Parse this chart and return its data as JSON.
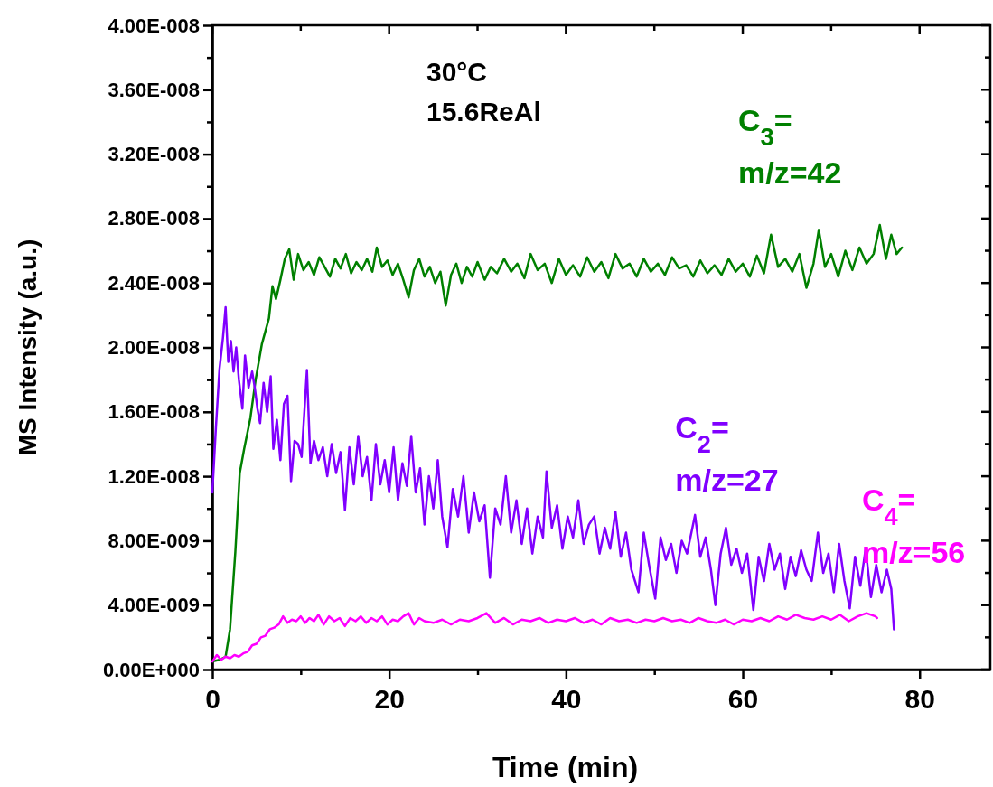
{
  "chart_data": {
    "type": "line",
    "xlabel": "Time (min)",
    "ylabel": "MS Intensity (a.u.)",
    "annotations": [
      "30°C",
      "15.6ReAl"
    ],
    "xlim": [
      0,
      88
    ],
    "ylim": [
      0,
      4e-08
    ],
    "xticks": [
      0,
      {
        "value": 10,
        "label": null
      },
      20,
      {
        "value": 30,
        "label": null
      },
      40,
      {
        "value": 50,
        "label": null
      },
      60,
      {
        "value": 70,
        "label": null
      },
      80
    ],
    "yticks": [
      {
        "value": 0,
        "label": "0.00E+000"
      },
      {
        "value": 2e-09,
        "label": null
      },
      {
        "value": 4e-09,
        "label": "4.00E-009"
      },
      {
        "value": 6e-09,
        "label": null
      },
      {
        "value": 8e-09,
        "label": "8.00E-009"
      },
      {
        "value": 1e-08,
        "label": null
      },
      {
        "value": 1.2e-08,
        "label": "1.20E-008"
      },
      {
        "value": 1.4e-08,
        "label": null
      },
      {
        "value": 1.6e-08,
        "label": "1.60E-008"
      },
      {
        "value": 1.8e-08,
        "label": null
      },
      {
        "value": 2e-08,
        "label": "2.00E-008"
      },
      {
        "value": 2.2e-08,
        "label": null
      },
      {
        "value": 2.4e-08,
        "label": "2.40E-008"
      },
      {
        "value": 2.6e-08,
        "label": null
      },
      {
        "value": 2.8e-08,
        "label": "2.80E-008"
      },
      {
        "value": 3e-08,
        "label": null
      },
      {
        "value": 3.2e-08,
        "label": "3.20E-008"
      },
      {
        "value": 3.4e-08,
        "label": null
      },
      {
        "value": 3.6e-08,
        "label": "3.60E-008"
      },
      {
        "value": 3.8e-08,
        "label": null
      },
      {
        "value": 4e-08,
        "label": "4.00E-008"
      }
    ],
    "series": [
      {
        "name": "C$_{3}$=\nm/z=42",
        "color": "#008000",
        "x": [
          0,
          0.8,
          1.5,
          2.0,
          2.6,
          3.1,
          3.6,
          4.3,
          4.9,
          5.6,
          6.4,
          6.8,
          7.2,
          7.7,
          8.2,
          8.7,
          9.2,
          9.7,
          10.3,
          10.9,
          11.5,
          12.1,
          12.7,
          13.3,
          13.9,
          14.5,
          15.1,
          15.7,
          16.3,
          16.9,
          17.5,
          18.1,
          18.6,
          19.2,
          19.8,
          20.4,
          21.0,
          21.6,
          22.2,
          22.8,
          23.4,
          24.0,
          24.6,
          25.2,
          25.8,
          26.4,
          27.0,
          27.6,
          28.2,
          28.8,
          29.4,
          30.0,
          30.8,
          31.5,
          32.2,
          33.0,
          33.8,
          34.5,
          35.3,
          36.0,
          36.8,
          37.6,
          38.4,
          39.2,
          40.0,
          40.8,
          41.6,
          42.4,
          43.2,
          44.0,
          44.8,
          45.6,
          46.4,
          47.2,
          48.0,
          48.8,
          49.6,
          50.4,
          51.2,
          52.0,
          52.8,
          53.6,
          54.4,
          55.2,
          56.0,
          56.8,
          57.6,
          58.4,
          59.2,
          60.0,
          60.8,
          61.6,
          62.4,
          63.2,
          64.0,
          64.8,
          65.6,
          66.4,
          67.2,
          68.0,
          68.6,
          69.3,
          70.0,
          70.8,
          71.6,
          72.4,
          73.2,
          74.0,
          74.8,
          75.5,
          76.2,
          76.8,
          77.4,
          78.0
        ],
        "values": [
          5e-10,
          6e-10,
          8e-10,
          2.5e-09,
          7.3e-09,
          1.22e-08,
          1.37e-08,
          1.56e-08,
          1.8e-08,
          2.02e-08,
          2.18e-08,
          2.38e-08,
          2.3e-08,
          2.42e-08,
          2.55e-08,
          2.61e-08,
          2.42e-08,
          2.58e-08,
          2.48e-08,
          2.53e-08,
          2.45e-08,
          2.56e-08,
          2.5e-08,
          2.44e-08,
          2.55e-08,
          2.49e-08,
          2.58e-08,
          2.46e-08,
          2.53e-08,
          2.48e-08,
          2.55e-08,
          2.47e-08,
          2.62e-08,
          2.5e-08,
          2.54e-08,
          2.45e-08,
          2.52e-08,
          2.42e-08,
          2.31e-08,
          2.48e-08,
          2.55e-08,
          2.44e-08,
          2.5e-08,
          2.4e-08,
          2.47e-08,
          2.26e-08,
          2.45e-08,
          2.52e-08,
          2.4e-08,
          2.5e-08,
          2.44e-08,
          2.53e-08,
          2.42e-08,
          2.5e-08,
          2.46e-08,
          2.55e-08,
          2.47e-08,
          2.52e-08,
          2.43e-08,
          2.58e-08,
          2.48e-08,
          2.52e-08,
          2.4e-08,
          2.55e-08,
          2.45e-08,
          2.51e-08,
          2.44e-08,
          2.56e-08,
          2.47e-08,
          2.53e-08,
          2.43e-08,
          2.58e-08,
          2.49e-08,
          2.52e-08,
          2.44e-08,
          2.55e-08,
          2.47e-08,
          2.52e-08,
          2.45e-08,
          2.56e-08,
          2.49e-08,
          2.51e-08,
          2.44e-08,
          2.54e-08,
          2.46e-08,
          2.51e-08,
          2.45e-08,
          2.55e-08,
          2.47e-08,
          2.52e-08,
          2.44e-08,
          2.57e-08,
          2.46e-08,
          2.7e-08,
          2.5e-08,
          2.55e-08,
          2.47e-08,
          2.58e-08,
          2.37e-08,
          2.52e-08,
          2.73e-08,
          2.5e-08,
          2.58e-08,
          2.44e-08,
          2.6e-08,
          2.48e-08,
          2.62e-08,
          2.52e-08,
          2.58e-08,
          2.76e-08,
          2.55e-08,
          2.7e-08,
          2.58e-08,
          2.62e-08
        ]
      },
      {
        "name": "C$_{2}$=\nm/z=27",
        "color": "#8000ff",
        "x": [
          0,
          0.4,
          0.8,
          1.2,
          1.5,
          1.8,
          2.1,
          2.4,
          2.7,
          3.0,
          3.4,
          3.7,
          4.1,
          4.5,
          4.8,
          5.1,
          5.4,
          5.8,
          6.2,
          6.6,
          6.9,
          7.3,
          7.7,
          8.1,
          8.5,
          8.9,
          9.3,
          9.7,
          10.1,
          10.7,
          11.1,
          11.5,
          12.0,
          12.5,
          13.0,
          13.5,
          14.0,
          14.5,
          15.0,
          15.5,
          16.0,
          16.5,
          17.0,
          17.5,
          18.0,
          18.5,
          19.0,
          19.5,
          20.0,
          20.5,
          21.0,
          21.5,
          22.0,
          22.5,
          23.0,
          23.5,
          24.0,
          24.5,
          25.0,
          25.5,
          26.0,
          26.6,
          27.2,
          27.8,
          28.4,
          29.0,
          29.6,
          30.2,
          30.8,
          31.4,
          32.0,
          32.6,
          33.2,
          33.8,
          34.4,
          35.0,
          35.6,
          36.2,
          36.8,
          37.4,
          37.8,
          38.4,
          39.0,
          39.6,
          40.2,
          40.8,
          41.4,
          42.0,
          42.6,
          43.2,
          43.8,
          44.4,
          45.0,
          45.6,
          46.2,
          46.8,
          47.4,
          48.2,
          48.8,
          49.4,
          50.1,
          50.7,
          51.3,
          51.9,
          52.5,
          53.1,
          53.7,
          54.3,
          54.6,
          55.2,
          55.8,
          56.4,
          56.9,
          57.5,
          58.1,
          58.7,
          59.3,
          59.9,
          60.5,
          61.2,
          61.8,
          62.4,
          63.0,
          63.6,
          64.2,
          64.8,
          65.4,
          66.0,
          66.6,
          67.2,
          67.8,
          68.5,
          69.1,
          69.7,
          70.3,
          70.9,
          71.5,
          72.1,
          72.7,
          73.3,
          73.9,
          74.5,
          75.1,
          75.7,
          76.3,
          76.8,
          77.1
        ],
        "values": [
          1.1e-08,
          1.5e-08,
          1.86e-08,
          2.06e-08,
          2.25e-08,
          1.91e-08,
          2.04e-08,
          1.85e-08,
          2e-08,
          1.8e-08,
          1.62e-08,
          1.95e-08,
          1.75e-08,
          1.85e-08,
          1.75e-08,
          1.62e-08,
          1.53e-08,
          1.78e-08,
          1.6e-08,
          1.82e-08,
          1.37e-08,
          1.55e-08,
          1.3e-08,
          1.65e-08,
          1.7e-08,
          1.17e-08,
          1.42e-08,
          1.4e-08,
          1.32e-08,
          1.86e-08,
          1.28e-08,
          1.42e-08,
          1.3e-08,
          1.38e-08,
          1.2e-08,
          1.4e-08,
          1.22e-08,
          1.35e-08,
          9.9e-09,
          1.38e-08,
          1.15e-08,
          1.45e-08,
          1.2e-08,
          1.32e-08,
          1.05e-08,
          1.4e-08,
          1.15e-08,
          1.3e-08,
          1.1e-08,
          1.38e-08,
          1.05e-08,
          1.28e-08,
          1.14e-08,
          1.45e-08,
          1.1e-08,
          1.25e-08,
          9e-09,
          1.2e-08,
          1e-08,
          1.3e-08,
          9.5e-09,
          7.6e-09,
          1.12e-08,
          9.5e-09,
          1.2e-08,
          8.5e-09,
          1.1e-08,
          9.2e-09,
          1.02e-08,
          5.7e-09,
          1e-08,
          9e-09,
          1.2e-08,
          8.5e-09,
          1.05e-08,
          7.8e-09,
          1e-08,
          7.2e-09,
          9.5e-09,
          8.2e-09,
          1.23e-08,
          8.8e-09,
          1.02e-08,
          7.5e-09,
          9.5e-09,
          8.2e-09,
          1.05e-08,
          7.8e-09,
          9e-09,
          9.5e-09,
          7.2e-09,
          8.8e-09,
          7.5e-09,
          9.8e-09,
          7e-09,
          8.5e-09,
          6.2e-09,
          4.8e-09,
          8.5e-09,
          6.5e-09,
          4.4e-09,
          8.2e-09,
          6.8e-09,
          7.8e-09,
          6e-09,
          8e-09,
          7.2e-09,
          8.8e-09,
          9.6e-09,
          7e-09,
          8.2e-09,
          6.2e-09,
          4e-09,
          7.2e-09,
          8.8e-09,
          6.5e-09,
          7.5e-09,
          6e-09,
          7.2e-09,
          3.7e-09,
          7e-09,
          5.5e-09,
          7.8e-09,
          6.2e-09,
          7.2e-09,
          5e-09,
          7e-09,
          5.8e-09,
          7.4e-09,
          6.2e-09,
          5.5e-09,
          8.5e-09,
          6e-09,
          7.2e-09,
          4.8e-09,
          7.8e-09,
          5.5e-09,
          3.8e-09,
          7e-09,
          5.2e-09,
          7.5e-09,
          4.5e-09,
          6.5e-09,
          4.8e-09,
          6.2e-09,
          5e-09,
          2.5e-09
        ]
      },
      {
        "name": "C$_{4}$=\nm/z=56",
        "color": "#ff00ff",
        "x": [
          0,
          0.5,
          1.0,
          1.5,
          2.0,
          2.5,
          3.0,
          3.5,
          4.0,
          4.5,
          5.0,
          5.5,
          6.0,
          6.5,
          7.0,
          7.5,
          8.0,
          8.5,
          9.0,
          9.5,
          10.0,
          10.5,
          11.0,
          11.5,
          12.0,
          12.6,
          13.2,
          13.8,
          14.4,
          15.0,
          15.6,
          16.2,
          16.8,
          17.4,
          18.0,
          18.6,
          19.2,
          19.8,
          20.4,
          21.0,
          21.6,
          22.2,
          22.8,
          23.4,
          24.0,
          25.0,
          26.0,
          27.0,
          28.0,
          29.0,
          30.0,
          31.0,
          32.0,
          33.0,
          34.0,
          35.0,
          36.0,
          37.0,
          38.0,
          39.0,
          40.0,
          41.0,
          42.0,
          43.0,
          44.0,
          45.0,
          46.0,
          47.0,
          48.0,
          49.0,
          50.0,
          51.0,
          52.0,
          53.0,
          54.0,
          55.0,
          56.0,
          57.0,
          58.0,
          59.0,
          60.0,
          61.0,
          62.0,
          63.0,
          64.0,
          65.0,
          66.0,
          67.0,
          68.0,
          69.0,
          70.0,
          71.0,
          72.0,
          73.0,
          74.0,
          75.0,
          75.2
        ],
        "values": [
          5e-10,
          9e-10,
          6e-10,
          8e-10,
          7e-10,
          9e-10,
          8e-10,
          1e-09,
          1.1e-09,
          1.5e-09,
          1.6e-09,
          2e-09,
          2.1e-09,
          2.5e-09,
          2.6e-09,
          2.8e-09,
          3.3e-09,
          2.9e-09,
          3.1e-09,
          3e-09,
          3.3e-09,
          2.9e-09,
          3.2e-09,
          3e-09,
          3.4e-09,
          2.8e-09,
          3.3e-09,
          3e-09,
          3.2e-09,
          2.7e-09,
          3.2e-09,
          3e-09,
          3.3e-09,
          2.9e-09,
          3.2e-09,
          3e-09,
          3.3e-09,
          2.8e-09,
          3.1e-09,
          3e-09,
          3.3e-09,
          3.5e-09,
          2.8e-09,
          3.2e-09,
          3e-09,
          2.9e-09,
          3.1e-09,
          2.8e-09,
          3.1e-09,
          3e-09,
          3.2e-09,
          3.5e-09,
          2.9e-09,
          3.2e-09,
          2.8e-09,
          3.1e-09,
          3e-09,
          3.2e-09,
          2.9e-09,
          3.1e-09,
          3e-09,
          3.2e-09,
          2.9e-09,
          3.1e-09,
          2.8e-09,
          3.2e-09,
          3e-09,
          3.1e-09,
          2.9e-09,
          3.1e-09,
          3e-09,
          3.2e-09,
          3e-09,
          3.1e-09,
          2.9e-09,
          3.2e-09,
          3e-09,
          2.9e-09,
          3.1e-09,
          2.8e-09,
          3.1e-09,
          3e-09,
          3.2e-09,
          3e-09,
          3.3e-09,
          3.1e-09,
          3.4e-09,
          3.2e-09,
          3.1e-09,
          3.3e-09,
          3.1e-09,
          3.4e-09,
          3e-09,
          3.3e-09,
          3.5e-09,
          3.3e-09,
          3.2e-09
        ]
      }
    ]
  }
}
